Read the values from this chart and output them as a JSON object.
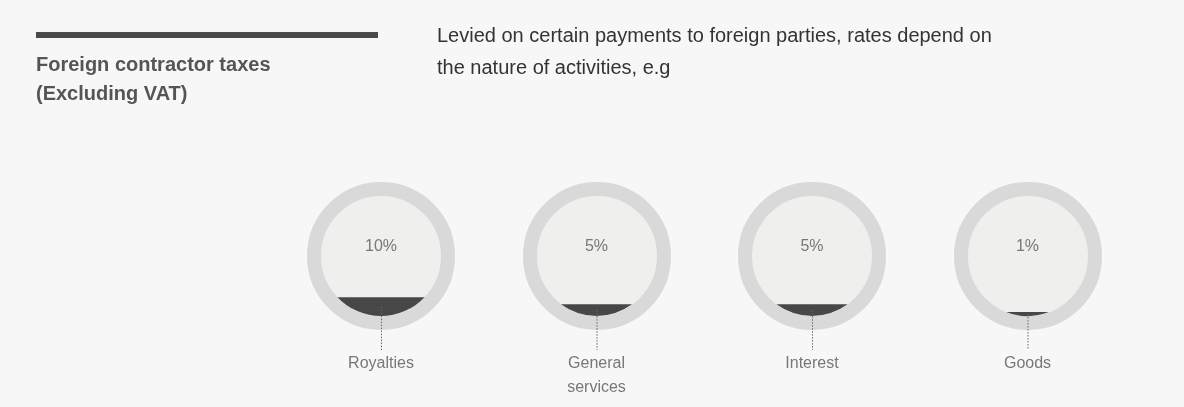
{
  "chart_data": {
    "type": "other",
    "title": "Foreign contractor taxes (Excluding VAT)",
    "subtitle": "Levied on certain payments to foreign parties, rates depend on the nature of activities, e.g",
    "categories": [
      "Royalties",
      "General services",
      "Interest",
      "Goods"
    ],
    "values": [
      10,
      5,
      5,
      1
    ],
    "value_labels": [
      "10%",
      "5%",
      "5%",
      "1%"
    ]
  }
}
